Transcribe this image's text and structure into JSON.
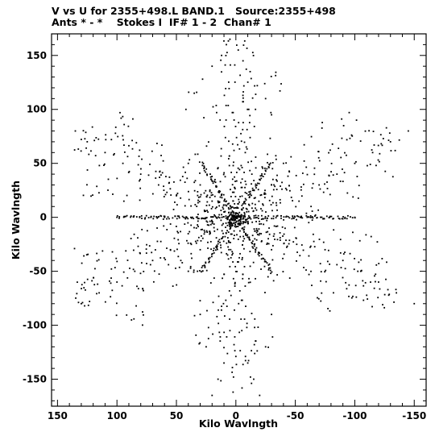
{
  "header": {
    "line1": "V vs U for 2355+498.L BAND.1   Source:2355+498",
    "line2": "Ants * - *    Stokes I  IF# 1 - 2  Chan# 1"
  },
  "chart_data": {
    "type": "scatter",
    "title": "V vs U for 2355+498.L BAND.1   Source:2355+498",
    "subtitle": "Ants * - *    Stokes I  IF# 1 - 2  Chan# 1",
    "xlabel": "Kilo Wavlngth",
    "ylabel": "Kilo Wavlngth",
    "xlim": [
      155,
      -160
    ],
    "ylim": [
      -175,
      170
    ],
    "x_ticks": [
      150,
      100,
      50,
      0,
      -50,
      -100,
      -150
    ],
    "y_ticks": [
      150,
      100,
      50,
      0,
      -50,
      -100,
      -150
    ],
    "x_tick_labels": [
      "150",
      "100",
      "50",
      "0",
      "-50",
      "-100",
      "-150"
    ],
    "y_tick_labels": [
      "150",
      "100",
      "50",
      "0",
      "-50",
      "-100",
      "-150"
    ],
    "grid": false,
    "marker_color": "#000000",
    "series": [
      {
        "description": "uv-coverage sample points (u, v) in kilo-wavelengths; six-armed star pattern, approx. 1700 points; representative track points listed",
        "points": [
          [
            5,
            165
          ],
          [
            8,
            160
          ],
          [
            -2,
            155
          ],
          [
            12,
            150
          ],
          [
            -6,
            145
          ],
          [
            20,
            140
          ],
          [
            -12,
            135
          ],
          [
            28,
            128
          ],
          [
            -18,
            122
          ],
          [
            35,
            115
          ],
          [
            -25,
            110
          ],
          [
            42,
            100
          ],
          [
            -30,
            95
          ],
          [
            135,
            80
          ],
          [
            125,
            70
          ],
          [
            110,
            60
          ],
          [
            95,
            50
          ],
          [
            80,
            40
          ],
          [
            65,
            30
          ],
          [
            50,
            20
          ],
          [
            -145,
            80
          ],
          [
            -130,
            70
          ],
          [
            -115,
            60
          ],
          [
            -100,
            50
          ],
          [
            -85,
            40
          ],
          [
            -70,
            30
          ],
          [
            130,
            -80
          ],
          [
            115,
            -70
          ],
          [
            100,
            -60
          ],
          [
            85,
            -50
          ],
          [
            70,
            -40
          ],
          [
            55,
            -30
          ],
          [
            -150,
            -80
          ],
          [
            -135,
            -70
          ],
          [
            -120,
            -60
          ],
          [
            -105,
            -50
          ],
          [
            -90,
            -40
          ],
          [
            -75,
            -30
          ],
          [
            20,
            -165
          ],
          [
            15,
            -150
          ],
          [
            10,
            -135
          ],
          [
            25,
            -120
          ],
          [
            5,
            -105
          ],
          [
            30,
            -90
          ],
          [
            -20,
            -165
          ],
          [
            -15,
            -150
          ],
          [
            -10,
            -135
          ],
          [
            -25,
            -120
          ],
          [
            -5,
            -105
          ],
          [
            -30,
            -90
          ],
          [
            40,
            50
          ],
          [
            30,
            30
          ],
          [
            20,
            15
          ],
          [
            10,
            5
          ],
          [
            -10,
            -5
          ],
          [
            -20,
            -15
          ],
          [
            -30,
            -30
          ],
          [
            40,
            -50
          ],
          [
            30,
            -30
          ],
          [
            -40,
            50
          ],
          [
            -30,
            30
          ],
          [
            60,
            0
          ],
          [
            -60,
            0
          ],
          [
            100,
            0
          ],
          [
            -100,
            0
          ]
        ]
      }
    ]
  }
}
